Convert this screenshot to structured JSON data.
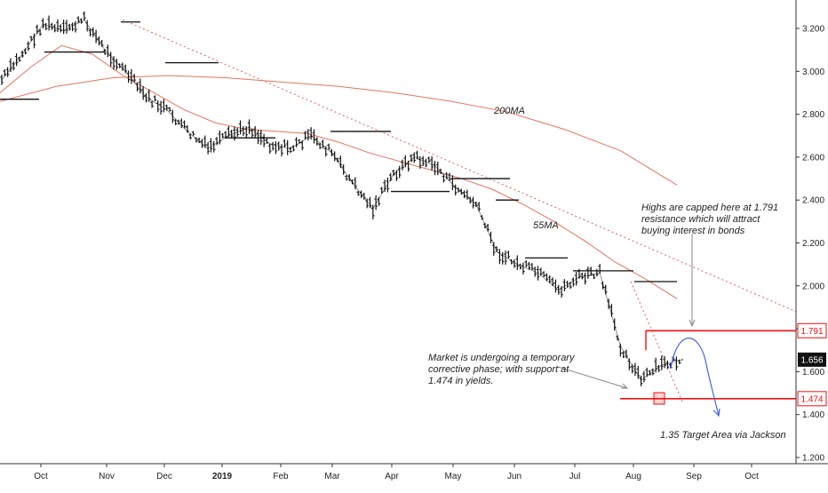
{
  "chart_data": {
    "type": "line",
    "title": "",
    "xlabel": "",
    "ylabel": "",
    "x_ticks": [
      "Oct",
      "Nov",
      "Dec",
      "2019",
      "Feb",
      "Mar",
      "Apr",
      "May",
      "Jun",
      "Jul",
      "Aug",
      "Sep",
      "Oct"
    ],
    "y_ticks": [
      "3.200",
      "3.000",
      "2.800",
      "2.600",
      "2.400",
      "2.200",
      "2.000",
      "1.800",
      "1.600",
      "1.400",
      "1.200"
    ],
    "ylim": [
      1.2,
      3.3
    ],
    "series": [
      {
        "values": [
          2.96,
          3.08,
          3.22,
          3.19,
          3.24,
          3.1,
          3.0,
          2.88,
          2.82,
          2.72,
          2.64,
          2.7,
          2.74,
          2.66,
          2.64,
          2.7,
          2.62,
          2.48,
          2.36,
          2.52,
          2.6,
          2.56,
          2.46,
          2.38,
          2.16,
          2.1,
          2.06,
          1.98,
          2.04,
          2.06,
          1.72,
          1.56,
          1.63,
          1.656
        ]
      },
      {
        "name": "55MA",
        "values": [
          2.9,
          3.02,
          3.12,
          3.08,
          2.98,
          2.9,
          2.82,
          2.76,
          2.73,
          2.72,
          2.71,
          2.67,
          2.62,
          2.58,
          2.54,
          2.5,
          2.45,
          2.38,
          2.3,
          2.21,
          2.11,
          2.03,
          1.94
        ]
      },
      {
        "name": "200MA",
        "values": [
          2.86,
          2.93,
          2.97,
          2.98,
          2.97,
          2.95,
          2.93,
          2.9,
          2.86,
          2.81,
          2.73,
          2.63,
          2.47
        ]
      }
    ],
    "trendline": {
      "from": [
        3.24,
        "Nov"
      ],
      "to": [
        1.88,
        "Oct"
      ]
    },
    "levels": [
      {
        "value": 1.791,
        "label": "1.791"
      },
      {
        "value": 1.474,
        "label": "1.474"
      }
    ],
    "last_price": {
      "value": 1.656,
      "label": "1.656"
    },
    "annotations": {
      "ma200": "200MA",
      "ma55": "55MA",
      "highs_l1": "Highs are capped here at 1.791",
      "highs_l2": "resistance which will attract",
      "highs_l3": "buying interest in bonds",
      "market_l1": "Market is undergoing a temporary",
      "market_l2": "corrective phase; with support at",
      "market_l3": "1.474 in yields.",
      "target": "1.35 Target Area via Jackson"
    },
    "colors": {
      "price": "#111111",
      "ma": "#e8735f",
      "trendline": "#f05a5a",
      "level": "#ee1111",
      "projection": "#4466dd",
      "target_text": "#4a90d9",
      "last_price_bg": "#111111"
    }
  }
}
